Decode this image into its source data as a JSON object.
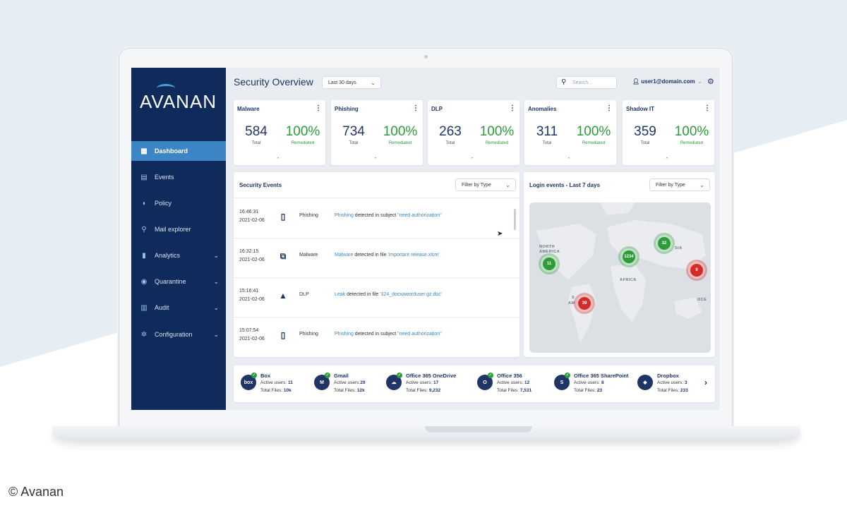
{
  "brand": {
    "logo_text": "AVANAN"
  },
  "sidebar": {
    "items": [
      {
        "label": "Dashboard",
        "icon": "dashboard-icon",
        "active": true
      },
      {
        "label": "Events",
        "icon": "calendar-icon"
      },
      {
        "label": "Policy",
        "icon": "shield-icon"
      },
      {
        "label": "Mail explorer",
        "icon": "search-icon"
      },
      {
        "label": "Analytics",
        "icon": "bar-chart-icon",
        "expandable": true
      },
      {
        "label": "Quarantine",
        "icon": "quarantine-icon",
        "expandable": true
      },
      {
        "label": "Audit",
        "icon": "clipboard-icon",
        "expandable": true
      },
      {
        "label": "Configuration",
        "icon": "gear-icon",
        "expandable": true
      }
    ]
  },
  "header": {
    "title": "Security Overview",
    "range": "Last 30 days",
    "search_placeholder": "Search...",
    "user": "user1@domain.com"
  },
  "stats": [
    {
      "title": "Malware",
      "total": "584",
      "total_label": "Total",
      "pct": "100%",
      "pct_label": "Remediated"
    },
    {
      "title": "Phishing",
      "total": "734",
      "total_label": "Total",
      "pct": "100%",
      "pct_label": "Remediated"
    },
    {
      "title": "DLP",
      "total": "263",
      "total_label": "Total",
      "pct": "100%",
      "pct_label": "Remediated"
    },
    {
      "title": "Anomalies",
      "total": "311",
      "total_label": "Total",
      "pct": "100%",
      "pct_label": "Remediated"
    },
    {
      "title": "Shadow IT",
      "total": "359",
      "total_label": "Total",
      "pct": "100%",
      "pct_label": "Remediated"
    }
  ],
  "events": {
    "title": "Security Events",
    "filter": "Filter by Type",
    "rows": [
      {
        "time": "16:46:31",
        "date": "2021-02-06",
        "icon": "office-icon",
        "type": "Phishing",
        "link": "Phishing",
        "text": " detected in subject ",
        "target": "\"need authorization\""
      },
      {
        "time": "16:32:15",
        "date": "2021-02-06",
        "icon": "exchange-icon",
        "type": "Malware",
        "link": "Malware",
        "text": " detected in file ",
        "target": "'important release.xlsm'"
      },
      {
        "time": "15:16:41",
        "date": "2021-02-06",
        "icon": "drive-icon",
        "type": "DLP",
        "link": "Leak",
        "text": " detected in file ",
        "target": "'324_docxaworduser.gz.doc'"
      },
      {
        "time": "15:07:54",
        "date": "2021-02-06",
        "icon": "office-icon",
        "type": "Phishing",
        "link": "Phishing",
        "text": " detected in subject ",
        "target": "\"need authorization\""
      }
    ]
  },
  "login_map": {
    "title": "Login events - Last 7 days",
    "filter": "Filter by Type",
    "labels": {
      "north_america": "NORTH\nAMERICA",
      "africa": "AFRICA",
      "south": "S",
      "south2": "AM",
      "asia": "SIA",
      "ocean": "OCE"
    },
    "clusters": [
      {
        "value": "11",
        "status": "green"
      },
      {
        "value": "1234",
        "status": "green"
      },
      {
        "value": "32",
        "status": "green"
      },
      {
        "value": "9",
        "status": "red"
      },
      {
        "value": "39",
        "status": "red"
      }
    ]
  },
  "apps": [
    {
      "name": "Box",
      "icon": "box-icon",
      "icon_text": "box",
      "active_label": "Active users: ",
      "active": "11",
      "files_label": "Total Files: ",
      "files": "10k"
    },
    {
      "name": "Gmail",
      "icon": "gmail-icon",
      "icon_text": "M",
      "active_label": "Active users:",
      "active": "29",
      "files_label": "Total Files: ",
      "files": "12k"
    },
    {
      "name": "Office 365 OneDrive",
      "icon": "onedrive-icon",
      "icon_text": "☁",
      "active_label": "Active users: ",
      "active": "17",
      "files_label": "Total Files: ",
      "files": "9,232"
    },
    {
      "name": "Office 356",
      "icon": "office-icon",
      "icon_text": "O",
      "active_label": "Active users: ",
      "active": "12",
      "files_label": "Total Files: ",
      "files": "7,531"
    },
    {
      "name": "Office 365 SharePoint",
      "icon": "sharepoint-icon",
      "icon_text": "S",
      "active_label": "Active users: ",
      "active": "8",
      "files_label": "Total Files: ",
      "files": "23"
    },
    {
      "name": "Dropbox",
      "icon": "dropbox-icon",
      "icon_text": "◆",
      "active_label": "Active users: ",
      "active": "3",
      "files_label": "Total Files: ",
      "files": "233"
    }
  ],
  "credit": "© Avanan",
  "colors": {
    "sidebar": "#0f2b5b",
    "accent": "#3c86c6",
    "success": "#2e9b3b",
    "danger": "#d42a2a"
  }
}
